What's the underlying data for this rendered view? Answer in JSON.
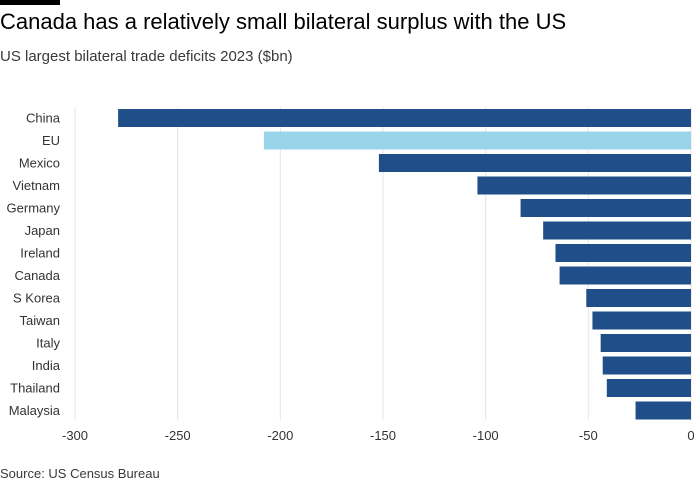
{
  "title": "Canada has a relatively small bilateral surplus with the US",
  "subtitle": "US largest bilateral trade deficits 2023 ($bn)",
  "source": "Source: US Census Bureau",
  "colors": {
    "primary": "#1f4e89",
    "highlight": "#99d4ea",
    "grid": "#e5e5e5",
    "text": "#333333"
  },
  "chart_data": {
    "type": "bar",
    "orientation": "horizontal",
    "title": "Canada has a relatively small bilateral surplus with the US",
    "subtitle": "US largest bilateral trade deficits 2023 ($bn)",
    "xlabel": "",
    "ylabel": "",
    "xlim": [
      -300,
      0
    ],
    "xticks": [
      -300,
      -250,
      -200,
      -150,
      -100,
      -50,
      0
    ],
    "grid": "vertical",
    "highlight": "EU",
    "categories": [
      "China",
      "EU",
      "Mexico",
      "Vietnam",
      "Germany",
      "Japan",
      "Ireland",
      "Canada",
      "S Korea",
      "Taiwan",
      "Italy",
      "India",
      "Thailand",
      "Malaysia"
    ],
    "values": [
      -279,
      -208,
      -152,
      -104,
      -83,
      -72,
      -66,
      -64,
      -51,
      -48,
      -44,
      -43,
      -41,
      -27
    ]
  }
}
